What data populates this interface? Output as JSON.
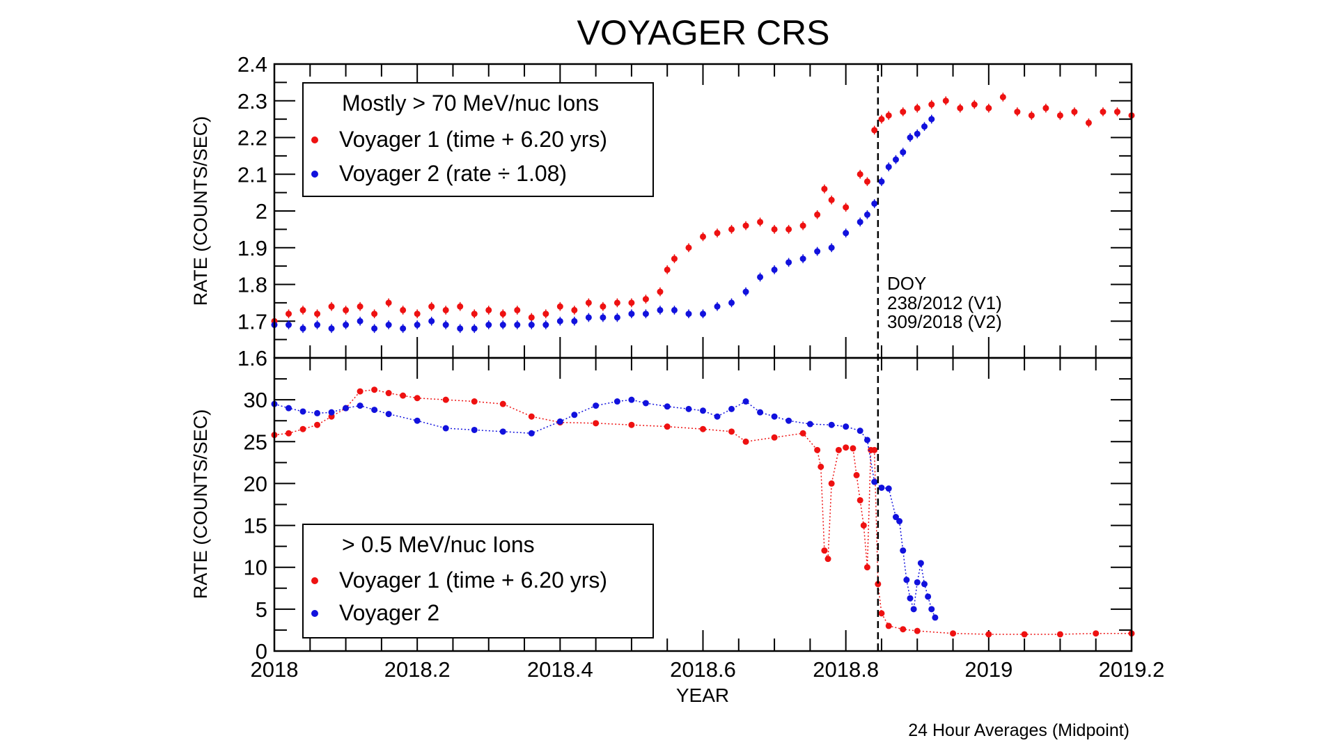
{
  "chart_data": {
    "type": "scatter",
    "title": "VOYAGER CRS",
    "xlabel": "YEAR",
    "x_ticks": [
      "2018",
      "2018.2",
      "2018.4",
      "2018.6",
      "2018.8",
      "2019",
      "2019.2"
    ],
    "xlim": [
      2018,
      2019.2
    ],
    "footnote": "24 Hour Averages (Midpoint)",
    "vline": {
      "x": 2018.845,
      "style": "dashed"
    },
    "annotation": [
      "DOY",
      "238/2012 (V1)",
      "309/2018 (V2)"
    ],
    "colors": {
      "v1": "#ee1111",
      "v2": "#1111dd"
    },
    "panels": [
      {
        "ylabel": "RATE (COUNTS/SEC)",
        "ylim": [
          1.6,
          2.4
        ],
        "y_ticks": [
          "1.6",
          "1.7",
          "1.8",
          "1.9",
          "2",
          "2.1",
          "2.2",
          "2.3",
          "2.4"
        ],
        "legend": {
          "placement": "top-left",
          "title": "Mostly > 70 MeV/nuc Ions",
          "entries": [
            "Voyager 1 (time + 6.20 yrs)",
            "Voyager 2 (rate ÷ 1.08)"
          ]
        },
        "series": [
          {
            "name": "Voyager 1 (time + 6.20 yrs)",
            "color": "#ee1111",
            "x": [
              2018.0,
              2018.02,
              2018.04,
              2018.06,
              2018.08,
              2018.1,
              2018.12,
              2018.14,
              2018.16,
              2018.18,
              2018.2,
              2018.22,
              2018.24,
              2018.26,
              2018.28,
              2018.3,
              2018.32,
              2018.34,
              2018.36,
              2018.38,
              2018.4,
              2018.42,
              2018.44,
              2018.46,
              2018.48,
              2018.5,
              2018.52,
              2018.54,
              2018.55,
              2018.56,
              2018.58,
              2018.6,
              2018.62,
              2018.64,
              2018.66,
              2018.68,
              2018.7,
              2018.72,
              2018.74,
              2018.76,
              2018.77,
              2018.78,
              2018.8,
              2018.82,
              2018.83,
              2018.84,
              2018.85,
              2018.86,
              2018.88,
              2018.9,
              2018.92,
              2018.94,
              2018.96,
              2018.98,
              2019.0,
              2019.02,
              2019.04,
              2019.06,
              2019.08,
              2019.1,
              2019.12,
              2019.14,
              2019.16,
              2019.18,
              2019.2
            ],
            "y": [
              1.7,
              1.72,
              1.73,
              1.72,
              1.74,
              1.73,
              1.74,
              1.72,
              1.75,
              1.73,
              1.72,
              1.74,
              1.73,
              1.74,
              1.72,
              1.73,
              1.72,
              1.73,
              1.71,
              1.72,
              1.74,
              1.73,
              1.75,
              1.74,
              1.75,
              1.75,
              1.76,
              1.78,
              1.84,
              1.87,
              1.9,
              1.93,
              1.94,
              1.95,
              1.96,
              1.97,
              1.95,
              1.95,
              1.96,
              1.99,
              2.06,
              2.03,
              2.01,
              2.1,
              2.08,
              2.22,
              2.25,
              2.26,
              2.27,
              2.28,
              2.29,
              2.3,
              2.28,
              2.29,
              2.28,
              2.31,
              2.27,
              2.26,
              2.28,
              2.26,
              2.27,
              2.24,
              2.27,
              2.27,
              2.26
            ],
            "err": 0.012
          },
          {
            "name": "Voyager 2 (rate ÷ 1.08)",
            "color": "#1111dd",
            "x": [
              2018.0,
              2018.02,
              2018.04,
              2018.06,
              2018.08,
              2018.1,
              2018.12,
              2018.14,
              2018.16,
              2018.18,
              2018.2,
              2018.22,
              2018.24,
              2018.26,
              2018.28,
              2018.3,
              2018.32,
              2018.34,
              2018.36,
              2018.38,
              2018.4,
              2018.42,
              2018.44,
              2018.46,
              2018.48,
              2018.5,
              2018.52,
              2018.54,
              2018.56,
              2018.58,
              2018.6,
              2018.62,
              2018.64,
              2018.66,
              2018.68,
              2018.7,
              2018.72,
              2018.74,
              2018.76,
              2018.78,
              2018.8,
              2018.82,
              2018.83,
              2018.84,
              2018.85,
              2018.86,
              2018.87,
              2018.88,
              2018.89,
              2018.9,
              2018.91,
              2018.92
            ],
            "y": [
              1.69,
              1.69,
              1.68,
              1.69,
              1.68,
              1.69,
              1.7,
              1.68,
              1.69,
              1.68,
              1.69,
              1.7,
              1.69,
              1.68,
              1.68,
              1.69,
              1.69,
              1.69,
              1.69,
              1.69,
              1.7,
              1.7,
              1.71,
              1.71,
              1.71,
              1.72,
              1.72,
              1.73,
              1.73,
              1.72,
              1.72,
              1.74,
              1.75,
              1.78,
              1.82,
              1.84,
              1.86,
              1.87,
              1.89,
              1.9,
              1.94,
              1.97,
              1.99,
              2.02,
              2.08,
              2.12,
              2.14,
              2.16,
              2.2,
              2.21,
              2.23,
              2.25
            ],
            "err": 0.012
          }
        ]
      },
      {
        "ylabel": "RATE (COUNTS/SEC)",
        "ylim": [
          0,
          35
        ],
        "y_ticks": [
          "0",
          "5",
          "10",
          "15",
          "20",
          "25",
          "30"
        ],
        "legend": {
          "placement": "bottom-left",
          "title": "> 0.5 MeV/nuc Ions",
          "entries": [
            "Voyager 1 (time + 6.20 yrs)",
            "Voyager 2"
          ]
        },
        "series": [
          {
            "name": "Voyager 1 (time + 6.20 yrs)",
            "color": "#ee1111",
            "x": [
              2018.0,
              2018.02,
              2018.04,
              2018.06,
              2018.08,
              2018.1,
              2018.12,
              2018.14,
              2018.16,
              2018.18,
              2018.2,
              2018.24,
              2018.28,
              2018.32,
              2018.36,
              2018.4,
              2018.45,
              2018.5,
              2018.55,
              2018.6,
              2018.64,
              2018.66,
              2018.7,
              2018.74,
              2018.76,
              2018.765,
              2018.77,
              2018.775,
              2018.78,
              2018.79,
              2018.8,
              2018.81,
              2018.815,
              2018.82,
              2018.825,
              2018.83,
              2018.835,
              2018.84,
              2018.845,
              2018.85,
              2018.86,
              2018.88,
              2018.9,
              2018.95,
              2019.0,
              2019.05,
              2019.1,
              2019.15,
              2019.2
            ],
            "y": [
              25.8,
              26.0,
              26.5,
              27.0,
              28.0,
              29.0,
              31.0,
              31.2,
              30.8,
              30.5,
              30.2,
              30.0,
              29.8,
              29.5,
              28.0,
              27.3,
              27.2,
              27.0,
              26.8,
              26.5,
              26.2,
              25.0,
              25.5,
              26.0,
              24.0,
              22.0,
              12.0,
              11.0,
              20.0,
              24.0,
              24.3,
              24.2,
              21.0,
              18.0,
              15.0,
              10.0,
              24.0,
              24.0,
              8.0,
              4.5,
              3.0,
              2.6,
              2.4,
              2.1,
              2.0,
              2.0,
              2.0,
              2.1,
              2.1
            ]
          },
          {
            "name": "Voyager 2",
            "color": "#1111dd",
            "x": [
              2018.0,
              2018.02,
              2018.04,
              2018.06,
              2018.08,
              2018.1,
              2018.12,
              2018.14,
              2018.16,
              2018.2,
              2018.24,
              2018.28,
              2018.32,
              2018.36,
              2018.4,
              2018.42,
              2018.45,
              2018.48,
              2018.5,
              2018.52,
              2018.55,
              2018.58,
              2018.6,
              2018.62,
              2018.64,
              2018.66,
              2018.68,
              2018.7,
              2018.72,
              2018.75,
              2018.78,
              2018.8,
              2018.82,
              2018.83,
              2018.84,
              2018.85,
              2018.86,
              2018.87,
              2018.875,
              2018.88,
              2018.885,
              2018.89,
              2018.895,
              2018.9,
              2018.905,
              2018.91,
              2018.915,
              2018.92,
              2018.925
            ],
            "y": [
              29.5,
              29.0,
              28.6,
              28.4,
              28.5,
              29.0,
              29.3,
              28.8,
              28.3,
              27.5,
              26.6,
              26.4,
              26.2,
              26.0,
              27.4,
              28.2,
              29.3,
              29.8,
              30.0,
              29.6,
              29.2,
              28.9,
              28.7,
              28.0,
              28.9,
              29.8,
              28.5,
              28.0,
              27.5,
              27.1,
              27.0,
              26.8,
              26.3,
              25.2,
              20.2,
              19.5,
              19.4,
              16.0,
              15.5,
              12.0,
              8.5,
              6.3,
              5.0,
              8.2,
              10.5,
              8.0,
              6.5,
              5.0,
              4.0
            ]
          }
        ]
      }
    ]
  }
}
